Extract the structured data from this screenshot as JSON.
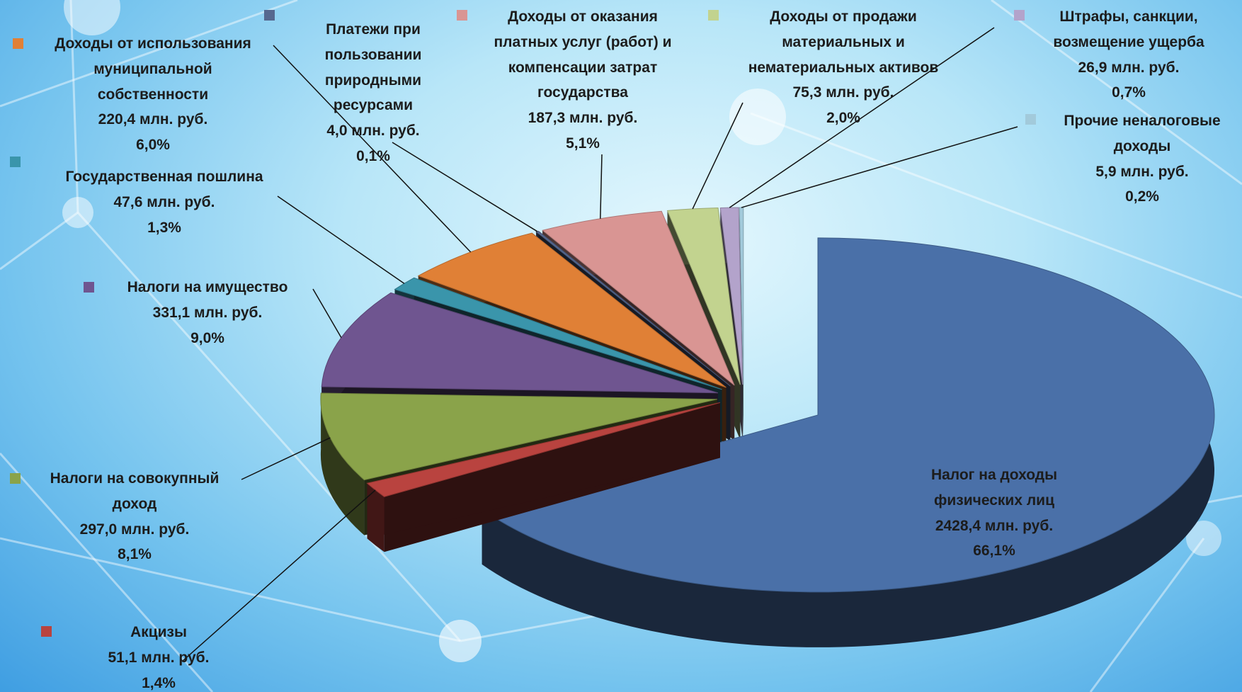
{
  "chart_data": {
    "type": "pie3d",
    "categories": [
      "Налог на доходы физических лиц",
      "Акцизы",
      "Налоги на совокупный доход",
      "Налоги на имущество",
      "Государственная пошлина",
      "Доходы от использования муниципальной собственности",
      "Платежи при пользовании природными ресурсами",
      "Доходы от оказания платных услуг (работ) и компенсации затрат государства",
      "Доходы от продажи материальных и нематериальных активов",
      "Штрафы, санкции, возмещение ущерба",
      "Прочие неналоговые доходы"
    ],
    "values": [
      2428.4,
      51.1,
      297.0,
      331.1,
      47.6,
      220.4,
      4.0,
      187.3,
      75.3,
      26.9,
      5.9
    ],
    "value_labels": [
      "2428,4 млн. руб.",
      "51,1 млн. руб.",
      "297,0 млн. руб.",
      "331,1 млн. руб.",
      "47,6 млн. руб.",
      "220,4 млн. руб.",
      "4,0 млн. руб.",
      "187,3 млн. руб.",
      "75,3 млн. руб.",
      "26,9 млн. руб.",
      "5,9 млн. руб."
    ],
    "percent_labels": [
      "66,1%",
      "1,4%",
      "8,1%",
      "9,0%",
      "1,3%",
      "6,0%",
      "0,1%",
      "5,1%",
      "2,0%",
      "0,7%",
      "0,2%"
    ],
    "colors": [
      "#4a70a8",
      "#b9433f",
      "#8aa34a",
      "#6f5590",
      "#3a95ab",
      "#e08036",
      "#56688f",
      "#d99593",
      "#c2d38f",
      "#b3a3cb",
      "#a2cadb"
    ]
  }
}
